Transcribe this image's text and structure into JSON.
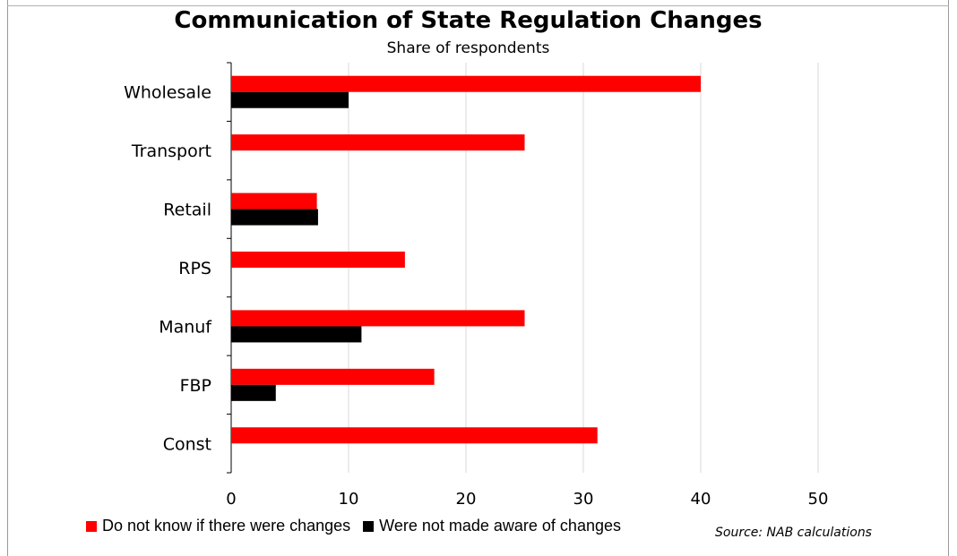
{
  "chart_data": {
    "type": "bar",
    "orientation": "horizontal",
    "title": "Communication of State Regulation Changes",
    "subtitle": "Share of respondents",
    "categories": [
      "Wholesale",
      "Transport",
      "Retail",
      "RPS",
      "Manuf",
      "FBP",
      "Const"
    ],
    "series": [
      {
        "name": "Do not know if there were changes",
        "color": "#ff0000",
        "values": [
          40,
          25,
          7.3,
          14.8,
          25,
          17.3,
          31.2
        ]
      },
      {
        "name": "Were not made aware of changes",
        "color": "#000000",
        "values": [
          10,
          0,
          7.4,
          0,
          11.1,
          3.8,
          0
        ]
      }
    ],
    "xlim": [
      0,
      50
    ],
    "xticks": [
      "0",
      "10",
      "20",
      "30",
      "40",
      "50"
    ],
    "grid": true,
    "legend_position": "bottom",
    "source": "Source: NAB calculations"
  }
}
